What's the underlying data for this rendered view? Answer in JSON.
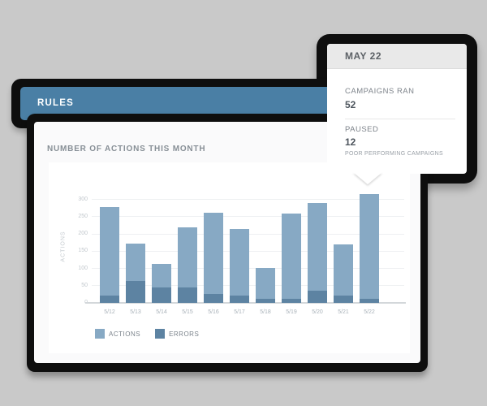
{
  "colors": {
    "background": "#c9c9c9",
    "frame_black": "#0e0e0e",
    "rules_blue": "#4a7fa5",
    "card_bg": "#fafafb",
    "panel_bg": "#ffffff",
    "tooltip_header_bg": "#e9e9e9",
    "actions_bar": "#87a9c4",
    "errors_bar": "#5d83a2"
  },
  "rules_bar": {
    "title": "RULES"
  },
  "card": {
    "title": "NUMBER OF ACTIONS THIS MONTH"
  },
  "tooltip": {
    "title": "MAY 22",
    "stats": [
      {
        "label": "CAMPAIGNS RAN",
        "value": "52"
      },
      {
        "label": "PAUSED",
        "value": "12",
        "caption": "POOR PERFORMING CAMPAIGNS"
      }
    ]
  },
  "chart_data": {
    "type": "bar",
    "title": "NUMBER OF ACTIONS THIS MONTH",
    "xlabel": "",
    "ylabel": "ACTIONS",
    "categories": [
      "5/12",
      "5/13",
      "5/14",
      "5/15",
      "5/16",
      "5/17",
      "5/18",
      "5/19",
      "5/20",
      "5/21",
      "5/22"
    ],
    "series": [
      {
        "name": "ACTIONS",
        "color": "#87a9c4",
        "style": "full-bar",
        "values": [
          277,
          170,
          112,
          218,
          261,
          214,
          101,
          258,
          288,
          168,
          315
        ]
      },
      {
        "name": "ERRORS",
        "color": "#5d83a2",
        "style": "overlay-bottom",
        "values": [
          20,
          63,
          43,
          43,
          26,
          21,
          12,
          12,
          34,
          21,
          12
        ]
      }
    ],
    "ylim": [
      0,
      300
    ],
    "yticks": [
      0,
      50,
      100,
      150,
      200,
      250,
      300
    ],
    "grid": true,
    "legend_position": "bottom-left",
    "highlighted_category": "5/22"
  }
}
